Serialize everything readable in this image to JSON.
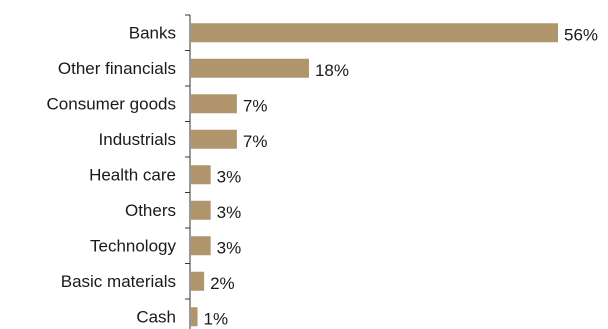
{
  "chart_data": {
    "type": "bar",
    "orientation": "horizontal",
    "categories": [
      "Banks",
      "Other financials",
      "Consumer goods",
      "Industrials",
      "Health care",
      "Others",
      "Technology",
      "Basic materials",
      "Cash"
    ],
    "values": [
      56,
      18,
      7,
      7,
      3,
      3,
      3,
      2,
      1
    ],
    "value_labels": [
      "56%",
      "18%",
      "7%",
      "7%",
      "3%",
      "3%",
      "3%",
      "2%",
      "1%"
    ],
    "unit": "%",
    "title": "",
    "xlabel": "",
    "ylabel": "",
    "xlim": [
      0,
      56
    ],
    "grid": false,
    "legend": "none",
    "bar_color": "#b0956c"
  }
}
